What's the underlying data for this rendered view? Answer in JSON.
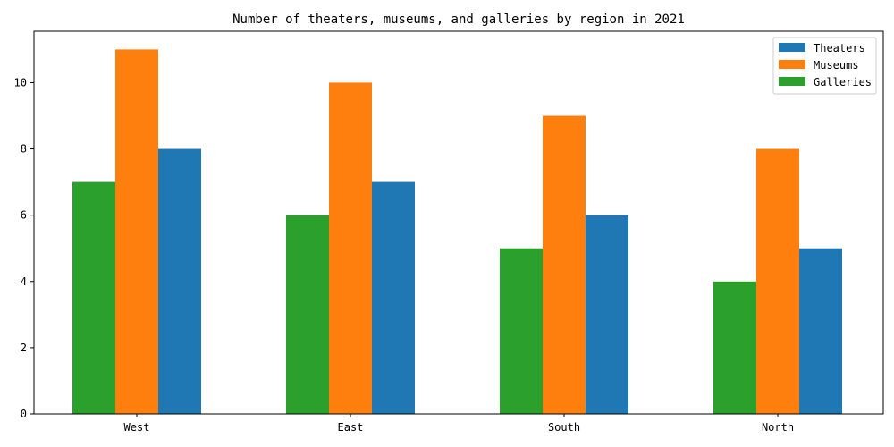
{
  "chart_data": {
    "type": "bar",
    "title": "Number of theaters, museums, and galleries by region in 2021",
    "xlabel": "",
    "ylabel": "",
    "categories": [
      "West",
      "East",
      "South",
      "North"
    ],
    "series": [
      {
        "name": "Theaters",
        "color": "#1f77b4",
        "values": [
          8,
          7,
          6,
          5
        ]
      },
      {
        "name": "Museums",
        "color": "#ff7f0e",
        "values": [
          11,
          10,
          9,
          8
        ]
      },
      {
        "name": "Galleries",
        "color": "#2ca02c",
        "values": [
          7,
          6,
          5,
          4
        ]
      }
    ],
    "bar_order": [
      "Galleries",
      "Museums",
      "Theaters"
    ],
    "yticks": [
      0,
      2,
      4,
      6,
      8,
      10
    ],
    "ylim": [
      0,
      11.55
    ],
    "grid": false,
    "legend_position": "top-right"
  }
}
